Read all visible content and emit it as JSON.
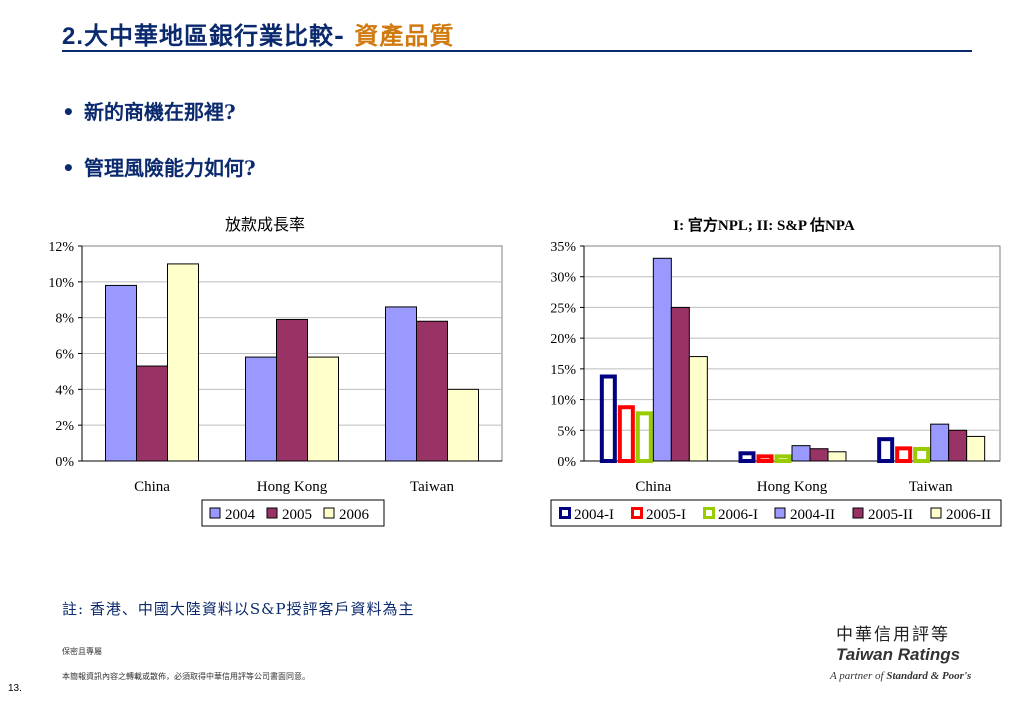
{
  "header": {
    "number": "2.",
    "title_main": "大中華地區銀行業比較-",
    "title_accent": "資產品質"
  },
  "bullets": [
    {
      "symbol": "•",
      "text": "新的商機在那裡?"
    },
    {
      "symbol": "•",
      "text": "管理風險能力如何?"
    }
  ],
  "colors": {
    "navy": "#0b2a6e",
    "accent": "#d07a10",
    "s2004": "#9999ff",
    "s2005": "#993366",
    "s2006": "#ffffcc",
    "s2004I": "#000080",
    "s2005I": "#ff0000",
    "s2006I": "#99cc00"
  },
  "chart_data": [
    {
      "type": "bar",
      "title": "放款成長率",
      "categories": [
        "China",
        "Hong Kong",
        "Taiwan"
      ],
      "ylim": [
        0,
        12
      ],
      "yticks": [
        "0%",
        "2%",
        "4%",
        "6%",
        "8%",
        "10%",
        "12%"
      ],
      "grid": true,
      "legend_position": "bottom",
      "series": [
        {
          "name": "2004",
          "values": [
            9.8,
            5.8,
            8.6
          ],
          "style": "filled"
        },
        {
          "name": "2005",
          "values": [
            5.3,
            7.9,
            7.8
          ],
          "style": "filled"
        },
        {
          "name": "2006",
          "values": [
            11.0,
            5.8,
            4.0
          ],
          "style": "filled"
        }
      ]
    },
    {
      "type": "bar",
      "title": "I: 官方NPL; II: S&P 估NPA",
      "categories": [
        "China",
        "Hong Kong",
        "Taiwan"
      ],
      "ylim": [
        0,
        35
      ],
      "yticks": [
        "0%",
        "5%",
        "10%",
        "15%",
        "20%",
        "25%",
        "30%",
        "35%"
      ],
      "grid": true,
      "legend_position": "bottom",
      "series": [
        {
          "name": "2004-I",
          "values": [
            14,
            1.5,
            3.8
          ],
          "style": "outline"
        },
        {
          "name": "2005-I",
          "values": [
            9,
            1.0,
            2.3
          ],
          "style": "outline"
        },
        {
          "name": "2006-I",
          "values": [
            8,
            1.0,
            2.2
          ],
          "style": "outline"
        },
        {
          "name": "2004-II",
          "values": [
            33,
            2.5,
            6.0
          ],
          "style": "filled"
        },
        {
          "name": "2005-II",
          "values": [
            25,
            2.0,
            5.0
          ],
          "style": "filled"
        },
        {
          "name": "2006-II",
          "values": [
            17,
            1.5,
            4.0
          ],
          "style": "filled"
        }
      ]
    }
  ],
  "note": "註: 香港、中國大陸資料以S&P授評客戶資料為主",
  "footer": {
    "confidential": "保密且專屬",
    "disclaimer": "本簡報資訊內容之轉載或散佈，必須取得中華信用評等公司書面同意。",
    "page_number": "13."
  },
  "logo": {
    "cn": "中華信用評等",
    "en": "Taiwan Ratings",
    "partner_prefix": "A partner of",
    "partner_name": "Standard & Poor's"
  }
}
